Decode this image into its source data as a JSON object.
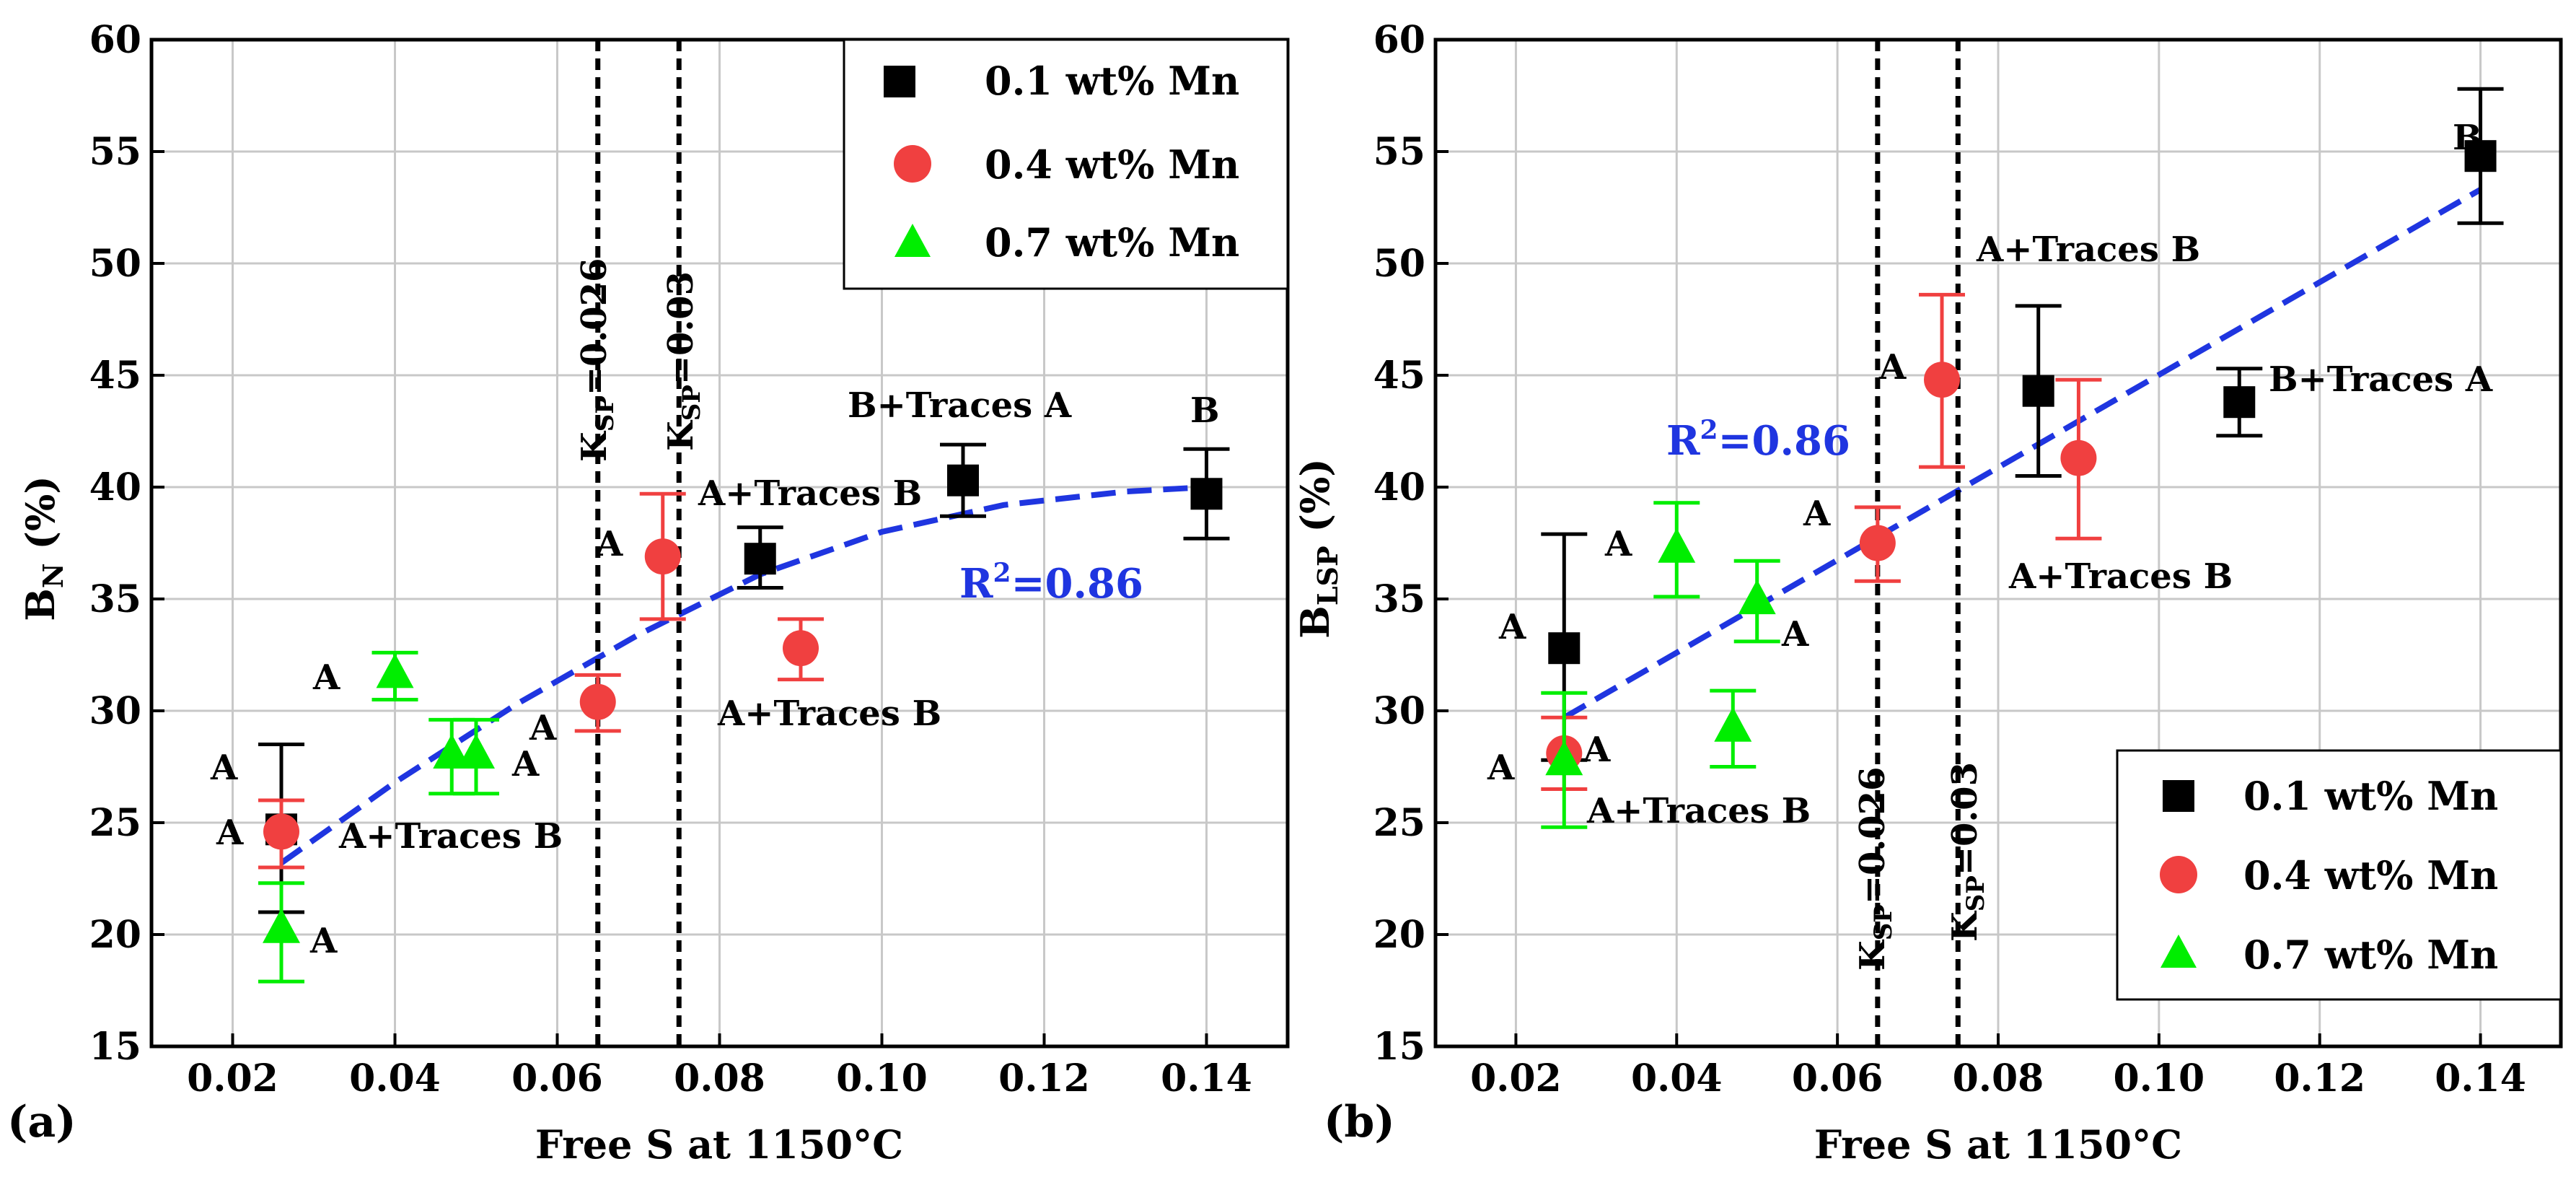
{
  "colors": {
    "mn01": "#000000",
    "mn04": "#f04040",
    "mn07": "#00ee00",
    "fit": "#1f35e0",
    "grid": "#c8c8c8",
    "ksp_line": "#000000"
  },
  "chart_data": [
    {
      "type": "scatter",
      "panel_label": "(a)",
      "xlabel": "Free S at 1150°C",
      "ylabel_main": "B",
      "ylabel_sub": "N",
      "ylabel_unit": " (%)",
      "xlim": [
        0.01,
        0.15
      ],
      "ylim": [
        15,
        60
      ],
      "xticks": [
        "0.02",
        "0.04",
        "0.06",
        "0.08",
        "0.10",
        "0.12",
        "0.14"
      ],
      "xtick_values": [
        0.02,
        0.04,
        0.06,
        0.08,
        0.1,
        0.12,
        0.14
      ],
      "yticks": [
        "15",
        "20",
        "25",
        "30",
        "35",
        "40",
        "45",
        "50",
        "55",
        "60"
      ],
      "ytick_values": [
        15,
        20,
        25,
        30,
        35,
        40,
        45,
        50,
        55,
        60
      ],
      "grid": true,
      "legend_position": "top-right",
      "legend": [
        "0.1 wt% Mn",
        "0.4 wt% Mn",
        "0.7 wt% Mn"
      ],
      "series": [
        {
          "name": "0.1 wt% Mn",
          "marker": "square",
          "color": "#000000",
          "x": [
            0.026,
            0.085,
            0.11,
            0.14
          ],
          "y": [
            24.7,
            36.8,
            40.3,
            39.7
          ],
          "err_low": [
            21.0,
            35.5,
            38.7,
            37.7
          ],
          "err_high": [
            28.5,
            38.2,
            41.9,
            41.7
          ]
        },
        {
          "name": "0.4 wt% Mn",
          "marker": "circle",
          "color": "#f04040",
          "x": [
            0.026,
            0.065,
            0.073,
            0.09
          ],
          "y": [
            24.6,
            30.4,
            36.9,
            32.8
          ],
          "err_low": [
            23.0,
            29.1,
            34.1,
            31.4
          ],
          "err_high": [
            26.0,
            31.6,
            39.7,
            34.1
          ]
        },
        {
          "name": "0.7 wt% Mn",
          "marker": "triangle",
          "color": "#00ee00",
          "x": [
            0.026,
            0.04,
            0.047,
            0.05
          ],
          "y": [
            20.2,
            31.6,
            28.0,
            28.0
          ],
          "err_low": [
            17.9,
            30.5,
            26.3,
            26.3
          ],
          "err_high": [
            22.3,
            32.6,
            29.6,
            29.6
          ]
        }
      ],
      "fit": {
        "r2_main": "R",
        "r2_sup": "2",
        "r2_value": "=0.86",
        "x": [
          0.026,
          0.04,
          0.055,
          0.07,
          0.085,
          0.1,
          0.115,
          0.13,
          0.14
        ],
        "y": [
          23.2,
          26.8,
          30.3,
          33.4,
          36.1,
          38.0,
          39.2,
          39.8,
          40.0
        ]
      },
      "ksp_lines": [
        {
          "x": 0.065,
          "main": "K",
          "sub": "SP",
          "value": "=0.026"
        },
        {
          "x": 0.075,
          "main": "K",
          "sub": "SP",
          "value": "=0.03"
        }
      ],
      "annotations": [
        "A",
        "A",
        "A+Traces B",
        "A",
        "A",
        "A",
        "A",
        "A",
        "A+Traces B",
        "A+Traces B",
        "B+Traces A",
        "B"
      ]
    },
    {
      "type": "scatter",
      "panel_label": "(b)",
      "xlabel": "Free S at 1150°C",
      "ylabel_main": "B",
      "ylabel_sub": "LSP",
      "ylabel_unit": " (%)",
      "xlim": [
        0.01,
        0.15
      ],
      "ylim": [
        15,
        60
      ],
      "xticks": [
        "0.02",
        "0.04",
        "0.06",
        "0.08",
        "0.10",
        "0.12",
        "0.14"
      ],
      "xtick_values": [
        0.02,
        0.04,
        0.06,
        0.08,
        0.1,
        0.12,
        0.14
      ],
      "yticks": [
        "15",
        "20",
        "25",
        "30",
        "35",
        "40",
        "45",
        "50",
        "55",
        "60"
      ],
      "ytick_values": [
        15,
        20,
        25,
        30,
        35,
        40,
        45,
        50,
        55,
        60
      ],
      "grid": true,
      "legend_position": "bottom-right",
      "legend": [
        "0.1 wt% Mn",
        "0.4 wt% Mn",
        "0.7 wt% Mn"
      ],
      "series": [
        {
          "name": "0.1 wt% Mn",
          "marker": "square",
          "color": "#000000",
          "x": [
            0.026,
            0.085,
            0.11,
            0.14
          ],
          "y": [
            32.8,
            44.3,
            43.8,
            54.8
          ],
          "err_low": [
            27.8,
            40.5,
            42.3,
            51.8
          ],
          "err_high": [
            37.9,
            48.1,
            45.3,
            57.8
          ]
        },
        {
          "name": "0.4 wt% Mn",
          "marker": "circle",
          "color": "#f04040",
          "x": [
            0.026,
            0.065,
            0.073,
            0.09
          ],
          "y": [
            28.1,
            37.5,
            44.8,
            41.3
          ],
          "err_low": [
            26.5,
            35.8,
            40.9,
            37.7
          ],
          "err_high": [
            29.7,
            39.1,
            48.6,
            44.8
          ]
        },
        {
          "name": "0.7 wt% Mn",
          "marker": "triangle",
          "color": "#00ee00",
          "x": [
            0.026,
            0.04,
            0.047,
            0.05
          ],
          "y": [
            27.7,
            37.2,
            29.2,
            34.9
          ],
          "err_low": [
            24.8,
            35.1,
            27.5,
            33.1
          ],
          "err_high": [
            30.8,
            39.3,
            30.9,
            36.7
          ]
        }
      ],
      "fit": {
        "r2_main": "R",
        "r2_sup": "2",
        "r2_value": "=0.86",
        "x": [
          0.026,
          0.14
        ],
        "y": [
          29.7,
          53.3
        ]
      },
      "ksp_lines": [
        {
          "x": 0.065,
          "main": "K",
          "sub": "SP",
          "value": "=0.026"
        },
        {
          "x": 0.075,
          "main": "K",
          "sub": "SP",
          "value": "=0.03"
        }
      ],
      "annotations": [
        "A",
        "A",
        "A",
        "A+Traces B",
        "A",
        "A",
        "A",
        "A",
        "A+Traces B",
        "A+Traces B",
        "B+Traces A",
        "B"
      ]
    }
  ]
}
